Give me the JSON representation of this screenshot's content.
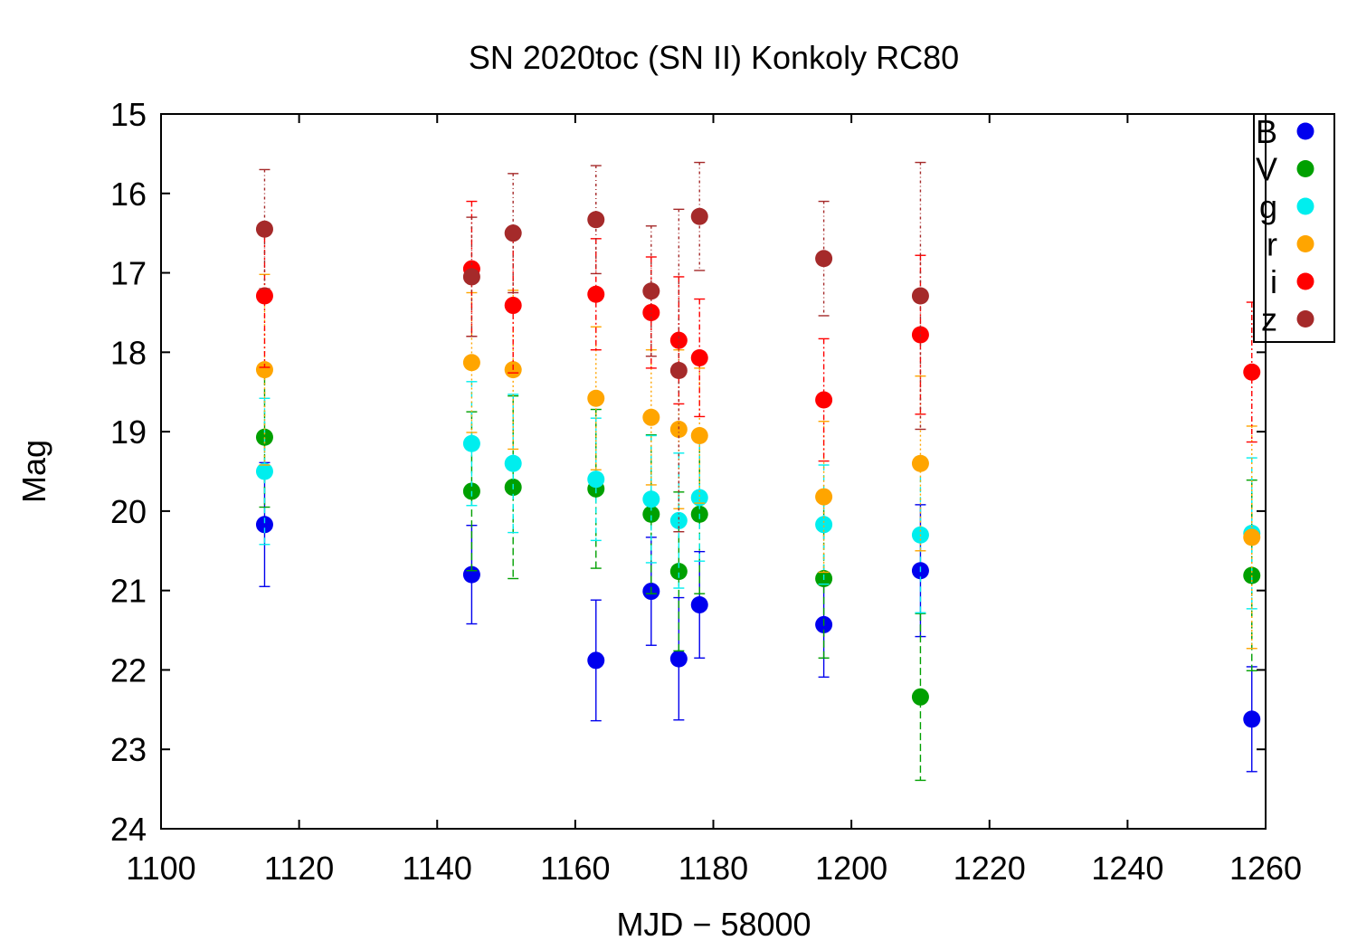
{
  "chart_data": {
    "type": "scatter",
    "title": "SN 2020toc (SN II) Konkoly RC80",
    "xlabel": "MJD − 58000",
    "ylabel": "Mag",
    "xlim": [
      1100,
      1260
    ],
    "ylim": [
      15,
      24
    ],
    "y_inverted": true,
    "x_ticks": [
      1100,
      1120,
      1140,
      1160,
      1180,
      1200,
      1220,
      1240,
      1260
    ],
    "y_ticks": [
      15,
      16,
      17,
      18,
      19,
      20,
      21,
      22,
      23,
      24
    ],
    "grid": false,
    "legend_position": "top-right",
    "error_bars": true,
    "series": [
      {
        "name": "B",
        "color": "#0000ee",
        "points": [
          {
            "x": 1115,
            "y": 20.17,
            "err": 0.78
          },
          {
            "x": 1145,
            "y": 20.8,
            "err": 0.62
          },
          {
            "x": 1163,
            "y": 21.88,
            "err": 0.76
          },
          {
            "x": 1171,
            "y": 21.01,
            "err": 0.68
          },
          {
            "x": 1175,
            "y": 21.86,
            "err": 0.77
          },
          {
            "x": 1178,
            "y": 21.18,
            "err": 0.67
          },
          {
            "x": 1196,
            "y": 21.43,
            "err": 0.66
          },
          {
            "x": 1210,
            "y": 20.75,
            "err": 0.83
          },
          {
            "x": 1258,
            "y": 22.62,
            "err": 0.66
          }
        ]
      },
      {
        "name": "V",
        "color": "#00a000",
        "points": [
          {
            "x": 1115,
            "y": 19.07,
            "err": 0.88
          },
          {
            "x": 1145,
            "y": 19.75,
            "err": 1.0
          },
          {
            "x": 1151,
            "y": 19.7,
            "err": 1.15
          },
          {
            "x": 1163,
            "y": 19.72,
            "err": 1.0
          },
          {
            "x": 1171,
            "y": 20.04,
            "err": 1.0
          },
          {
            "x": 1175,
            "y": 20.76,
            "err": 1.0
          },
          {
            "x": 1178,
            "y": 20.04,
            "err": 1.0
          },
          {
            "x": 1196,
            "y": 20.85,
            "err": 1.0
          },
          {
            "x": 1210,
            "y": 22.34,
            "err": 1.05
          },
          {
            "x": 1258,
            "y": 20.81,
            "err": 1.2
          }
        ]
      },
      {
        "name": "g",
        "color": "#00eeee",
        "points": [
          {
            "x": 1115,
            "y": 19.5,
            "err": 0.92
          },
          {
            "x": 1145,
            "y": 19.15,
            "err": 0.78
          },
          {
            "x": 1151,
            "y": 19.4,
            "err": 0.87
          },
          {
            "x": 1163,
            "y": 19.6,
            "err": 0.77
          },
          {
            "x": 1171,
            "y": 19.85,
            "err": 0.8
          },
          {
            "x": 1175,
            "y": 20.12,
            "err": 0.85
          },
          {
            "x": 1178,
            "y": 19.83,
            "err": 0.8
          },
          {
            "x": 1196,
            "y": 20.17,
            "err": 0.75
          },
          {
            "x": 1210,
            "y": 20.3,
            "err": 0.98
          },
          {
            "x": 1258,
            "y": 20.28,
            "err": 0.95
          }
        ]
      },
      {
        "name": "r",
        "color": "#ffa500",
        "points": [
          {
            "x": 1115,
            "y": 18.22,
            "err": 1.2
          },
          {
            "x": 1145,
            "y": 18.13,
            "err": 0.88
          },
          {
            "x": 1151,
            "y": 18.22,
            "err": 1.0
          },
          {
            "x": 1163,
            "y": 18.58,
            "err": 0.9
          },
          {
            "x": 1171,
            "y": 18.82,
            "err": 0.85
          },
          {
            "x": 1175,
            "y": 18.97,
            "err": 1.0
          },
          {
            "x": 1178,
            "y": 19.05,
            "err": 0.85
          },
          {
            "x": 1196,
            "y": 19.82,
            "err": 0.95
          },
          {
            "x": 1210,
            "y": 19.4,
            "err": 1.1
          },
          {
            "x": 1258,
            "y": 20.33,
            "err": 1.4
          }
        ]
      },
      {
        "name": "i",
        "color": "#ff0000",
        "points": [
          {
            "x": 1115,
            "y": 17.29,
            "err": 0.9
          },
          {
            "x": 1145,
            "y": 16.95,
            "err": 0.85
          },
          {
            "x": 1151,
            "y": 17.41,
            "err": 0.85
          },
          {
            "x": 1163,
            "y": 17.27,
            "err": 0.7
          },
          {
            "x": 1171,
            "y": 17.5,
            "err": 0.7
          },
          {
            "x": 1175,
            "y": 17.85,
            "err": 0.8
          },
          {
            "x": 1178,
            "y": 18.07,
            "err": 0.74
          },
          {
            "x": 1196,
            "y": 18.6,
            "err": 0.77
          },
          {
            "x": 1210,
            "y": 17.78,
            "err": 1.0
          },
          {
            "x": 1258,
            "y": 18.25,
            "err": 0.88
          }
        ]
      },
      {
        "name": "z",
        "color": "#a52a2a",
        "points": [
          {
            "x": 1115,
            "y": 16.45,
            "err": 0.75
          },
          {
            "x": 1145,
            "y": 17.05,
            "err": 0.75
          },
          {
            "x": 1151,
            "y": 16.5,
            "err": 0.75
          },
          {
            "x": 1163,
            "y": 16.33,
            "err": 0.68
          },
          {
            "x": 1171,
            "y": 17.23,
            "err": 0.82
          },
          {
            "x": 1175,
            "y": 18.23,
            "err": 2.03
          },
          {
            "x": 1178,
            "y": 16.29,
            "err": 0.68
          },
          {
            "x": 1196,
            "y": 16.82,
            "err": 0.72
          },
          {
            "x": 1210,
            "y": 17.29,
            "err": 1.68
          }
        ]
      }
    ]
  }
}
